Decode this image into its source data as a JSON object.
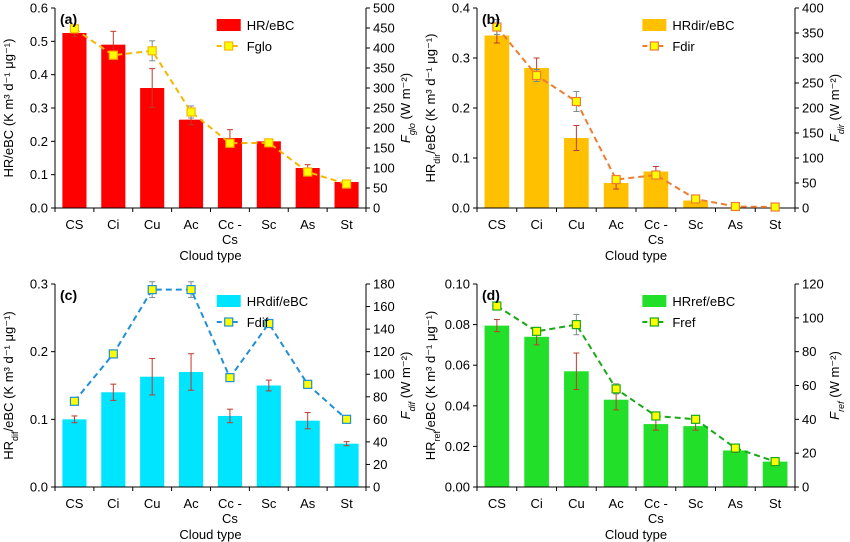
{
  "chart_data": [
    {
      "type": "bar",
      "panel_label": "(a)",
      "categories": [
        "CS",
        "Ci",
        "Cu",
        "Ac",
        "Cc - Cs",
        "Sc",
        "As",
        "St"
      ],
      "xlabel": "Cloud type",
      "ylabel": "HR/eBC (K m³ d⁻¹ μg⁻¹)",
      "ylabel2": "Fglo (W m⁻²)",
      "ylim": [
        0,
        0.6
      ],
      "y2lim": [
        0,
        500
      ],
      "yticks": [
        0,
        0.1,
        0.2,
        0.3,
        0.4,
        0.5,
        0.6
      ],
      "ytick_labels": [
        "0.0",
        "0.1",
        "0.2",
        "0.3",
        "0.4",
        "0.5",
        "0.6"
      ],
      "y2ticks": [
        0,
        50,
        100,
        150,
        200,
        250,
        300,
        350,
        400,
        450,
        500
      ],
      "y2tick_labels": [
        "0",
        "50",
        "100",
        "150",
        "200",
        "250",
        "300",
        "350",
        "400",
        "450",
        "500"
      ],
      "bar_color": "#ff0000",
      "line_color": "#f5b800",
      "legend_position": "top-right",
      "series": [
        {
          "name": "HR/eBC",
          "kind": "bar",
          "axis": "left",
          "values": [
            0.525,
            0.49,
            0.36,
            0.265,
            0.21,
            0.2,
            0.12,
            0.078
          ],
          "errors": [
            0.01,
            0.04,
            0.058,
            0.015,
            0.025,
            0.005,
            0.01,
            0.004
          ]
        },
        {
          "name": "Fglo",
          "kind": "line",
          "axis": "right",
          "values": [
            448,
            382,
            393,
            240,
            162,
            163,
            90,
            60
          ],
          "errors": [
            4,
            3,
            25,
            15,
            10,
            3,
            3,
            3
          ]
        }
      ]
    },
    {
      "type": "bar",
      "panel_label": "(b)",
      "categories": [
        "CS",
        "Ci",
        "Cu",
        "Ac",
        "Cc - Cs",
        "Sc",
        "As",
        "St"
      ],
      "xlabel": "Cloud type",
      "ylabel": "HRdir/eBC (K m³ d⁻¹ μg⁻¹)",
      "ylabel2": "Fdir (W m⁻²)",
      "ylim": [
        0,
        0.4
      ],
      "y2lim": [
        0,
        400
      ],
      "yticks": [
        0,
        0.1,
        0.2,
        0.3,
        0.4
      ],
      "ytick_labels": [
        "0.0",
        "0.1",
        "0.2",
        "0.3",
        "0.4"
      ],
      "y2ticks": [
        0,
        50,
        100,
        150,
        200,
        250,
        300,
        350,
        400
      ],
      "y2tick_labels": [
        "0",
        "50",
        "100",
        "150",
        "200",
        "250",
        "300",
        "350",
        "400"
      ],
      "bar_color": "#ffc000",
      "line_color": "#ed7d31",
      "legend_position": "top-right",
      "series": [
        {
          "name": "HRdir/eBC",
          "kind": "bar",
          "axis": "left",
          "values": [
            0.345,
            0.28,
            0.14,
            0.05,
            0.073,
            0.015,
            0.001,
            0.0
          ],
          "errors": [
            0.015,
            0.02,
            0.025,
            0.012,
            0.01,
            0.005,
            0,
            0
          ]
        },
        {
          "name": "Fdir",
          "kind": "line",
          "axis": "right",
          "values": [
            362,
            265,
            213,
            57,
            66,
            18,
            3,
            2
          ],
          "errors": [
            15,
            12,
            20,
            6,
            8,
            3,
            0,
            0
          ]
        }
      ]
    },
    {
      "type": "bar",
      "panel_label": "(c)",
      "categories": [
        "CS",
        "Ci",
        "Cu",
        "Ac",
        "Cc - Cs",
        "Sc",
        "As",
        "St"
      ],
      "xlabel": "Cloud type",
      "ylabel": "HRdif/eBC (K m³ d⁻¹ μg⁻¹)",
      "ylabel2": "Fdif (W m⁻²)",
      "ylim": [
        0,
        0.3
      ],
      "y2lim": [
        0,
        180
      ],
      "yticks": [
        0,
        0.1,
        0.2,
        0.3
      ],
      "ytick_labels": [
        "0.0",
        "0.1",
        "0.2",
        "0.3"
      ],
      "y2ticks": [
        0,
        20,
        40,
        60,
        80,
        100,
        120,
        140,
        160,
        180
      ],
      "y2tick_labels": [
        "0",
        "20",
        "40",
        "60",
        "80",
        "100",
        "120",
        "140",
        "160",
        "180"
      ],
      "bar_color": "#00e5ff",
      "line_color": "#1f8fd6",
      "legend_position": "top-right",
      "series": [
        {
          "name": "HRdif/eBC",
          "kind": "bar",
          "axis": "left",
          "values": [
            0.1,
            0.14,
            0.163,
            0.17,
            0.105,
            0.15,
            0.098,
            0.064
          ],
          "errors": [
            0.005,
            0.012,
            0.027,
            0.027,
            0.01,
            0.008,
            0.012,
            0.003
          ]
        },
        {
          "name": "Fdif",
          "kind": "line",
          "axis": "right",
          "values": [
            76,
            118,
            175,
            175,
            97,
            145,
            91,
            60
          ],
          "errors": [
            3,
            3,
            7,
            7,
            3,
            3,
            3,
            2
          ]
        }
      ]
    },
    {
      "type": "bar",
      "panel_label": "(d)",
      "categories": [
        "CS",
        "Ci",
        "Cu",
        "Ac",
        "Cc - Cs",
        "Sc",
        "As",
        "St"
      ],
      "xlabel": "Cloud type",
      "ylabel": "HRref/eBC (K m³ d⁻¹ μg⁻¹)",
      "ylabel2": "Fref (W m⁻²)",
      "ylim": [
        0,
        0.1
      ],
      "y2lim": [
        0,
        120
      ],
      "yticks": [
        0,
        0.02,
        0.04,
        0.06,
        0.08,
        0.1
      ],
      "ytick_labels": [
        "0.00",
        "0.02",
        "0.04",
        "0.06",
        "0.08",
        "0.10"
      ],
      "y2ticks": [
        0,
        20,
        40,
        60,
        80,
        100,
        120
      ],
      "y2tick_labels": [
        "0",
        "20",
        "40",
        "60",
        "80",
        "100",
        "120"
      ],
      "bar_color": "#22e02a",
      "line_color": "#1aa81a",
      "legend_position": "top-right",
      "series": [
        {
          "name": "HRref/eBC",
          "kind": "bar",
          "axis": "left",
          "values": [
            0.0795,
            0.074,
            0.057,
            0.043,
            0.031,
            0.03,
            0.018,
            0.0125
          ],
          "errors": [
            0.003,
            0.004,
            0.009,
            0.005,
            0.003,
            0.002,
            0.001,
            0.001
          ]
        },
        {
          "name": "Fref",
          "kind": "line",
          "axis": "right",
          "values": [
            107,
            92,
            96,
            58,
            42,
            40,
            23,
            15
          ],
          "errors": [
            2,
            2,
            6,
            3,
            2,
            2,
            1,
            1
          ]
        }
      ]
    }
  ]
}
